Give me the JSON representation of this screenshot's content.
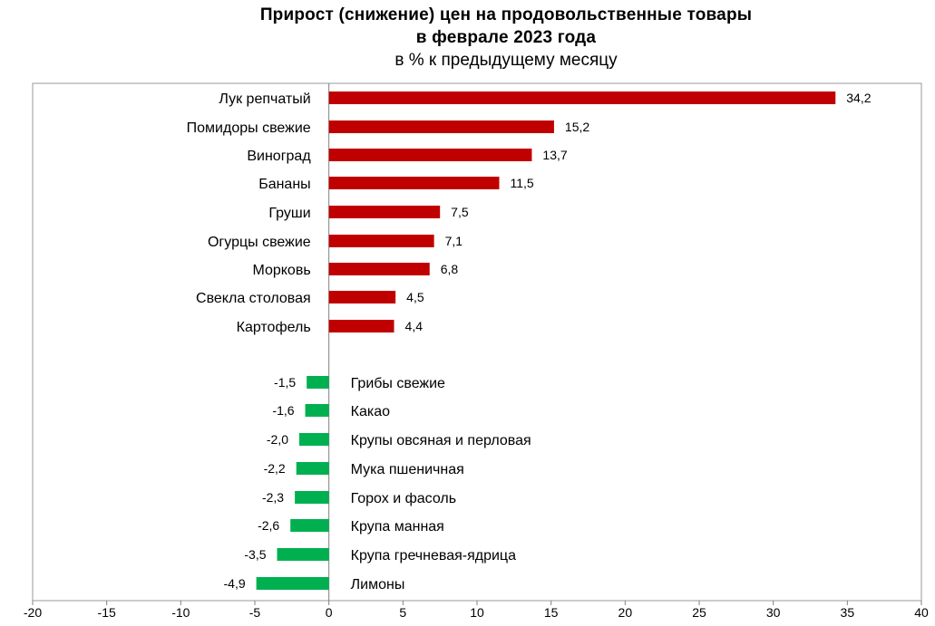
{
  "chart_data": {
    "type": "bar",
    "orientation": "horizontal",
    "title": "Прирост (снижение) цен на продовольственные товары",
    "title_line2": "в феврале 2023 года",
    "subtitle": "в % к предыдущему месяцу",
    "xlim": [
      -20,
      40
    ],
    "xticks": [
      -20,
      -15,
      -10,
      -5,
      0,
      5,
      10,
      15,
      20,
      25,
      30,
      35,
      40
    ],
    "grid": false,
    "colors": {
      "positive": "#c00000",
      "negative": "#00b050"
    },
    "bars": [
      {
        "category": "Лук репчатый",
        "value": 34.2,
        "label": "34,2"
      },
      {
        "category": "Помидоры свежие",
        "value": 15.2,
        "label": "15,2"
      },
      {
        "category": "Виноград",
        "value": 13.7,
        "label": "13,7"
      },
      {
        "category": "Бананы",
        "value": 11.5,
        "label": "11,5"
      },
      {
        "category": "Груши",
        "value": 7.5,
        "label": "7,5"
      },
      {
        "category": "Огурцы свежие",
        "value": 7.1,
        "label": "7,1"
      },
      {
        "category": "Морковь",
        "value": 6.8,
        "label": "6,8"
      },
      {
        "category": "Свекла столовая",
        "value": 4.5,
        "label": "4,5"
      },
      {
        "category": "Картофель",
        "value": 4.4,
        "label": "4,4"
      },
      {
        "category": "Грибы свежие",
        "value": -1.5,
        "label": "-1,5"
      },
      {
        "category": "Какао",
        "value": -1.6,
        "label": "-1,6"
      },
      {
        "category": "Крупы овсяная и перловая",
        "value": -2.0,
        "label": "-2,0"
      },
      {
        "category": "Мука пшеничная",
        "value": -2.2,
        "label": "-2,2"
      },
      {
        "category": "Горох и фасоль",
        "value": -2.3,
        "label": "-2,3"
      },
      {
        "category": "Крупа манная",
        "value": -2.6,
        "label": "-2,6"
      },
      {
        "category": "Крупа гречневая-ядрица",
        "value": -3.5,
        "label": "-3,5"
      },
      {
        "category": "Лимоны",
        "value": -4.9,
        "label": "-4,9"
      }
    ]
  }
}
